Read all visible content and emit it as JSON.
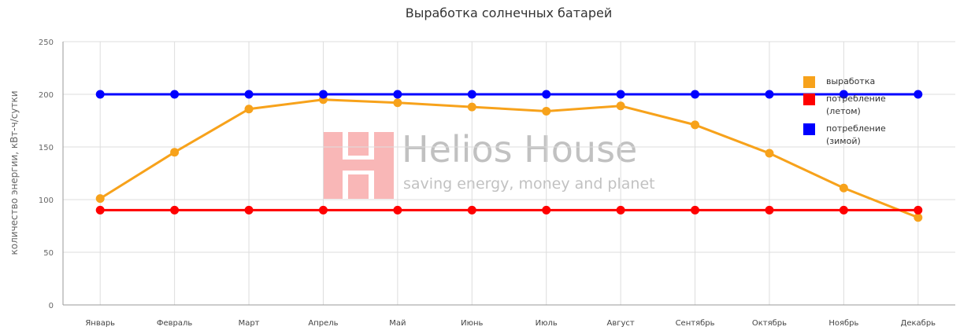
{
  "chart_data": {
    "type": "line",
    "title": "Выработка солнечных батарей",
    "ylabel": "количество энергии, кВт-ч/сутки",
    "watermark": {
      "title": "Helios House",
      "subtitle": "saving energy, money and planet"
    },
    "categories": [
      "Январь",
      "Февраль",
      "Март",
      "Апрель",
      "Май",
      "Июнь",
      "Июль",
      "Август",
      "Сентябрь",
      "Октябрь",
      "Ноябрь",
      "Декабрь"
    ],
    "series": [
      {
        "name": "выработка",
        "color": "#f7a21b",
        "values": [
          101,
          145,
          186,
          195,
          192,
          188,
          184,
          189,
          171,
          144,
          111,
          83
        ]
      },
      {
        "name": "потребление (летом)",
        "color": "#ff0000",
        "values": [
          90,
          90,
          90,
          90,
          90,
          90,
          90,
          90,
          90,
          90,
          90,
          90
        ]
      },
      {
        "name": "потребление (зимой)",
        "color": "#0000ff",
        "values": [
          200,
          200,
          200,
          200,
          200,
          200,
          200,
          200,
          200,
          200,
          200,
          200
        ]
      }
    ],
    "ylim": [
      0,
      250
    ],
    "yticks": [
      0,
      50,
      100,
      150,
      200,
      250
    ],
    "grid": true,
    "legend": "top-right"
  }
}
